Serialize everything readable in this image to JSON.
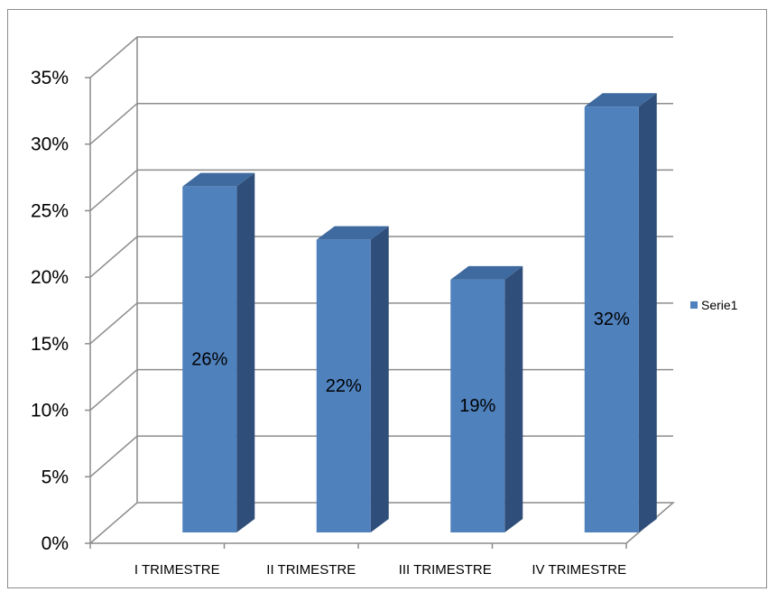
{
  "chart_data": {
    "type": "bar",
    "title": "",
    "xlabel": "",
    "ylabel": "",
    "categories": [
      "I TRIMESTRE",
      "II TRIMESTRE",
      "III TRIMESTRE",
      "IV TRIMESTRE"
    ],
    "series": [
      {
        "name": "Serie1",
        "values": [
          26,
          22,
          19,
          32
        ],
        "labels": [
          "26%",
          "22%",
          "19%",
          "32%"
        ],
        "color": "#4f81bd"
      }
    ],
    "ylim": [
      0,
      35
    ],
    "yticks": [
      "0%",
      "5%",
      "10%",
      "15%",
      "20%",
      "25%",
      "30%",
      "35%"
    ],
    "grid": true,
    "legend_position": "right",
    "style": "3d"
  },
  "legend": {
    "label": "Serie1"
  }
}
